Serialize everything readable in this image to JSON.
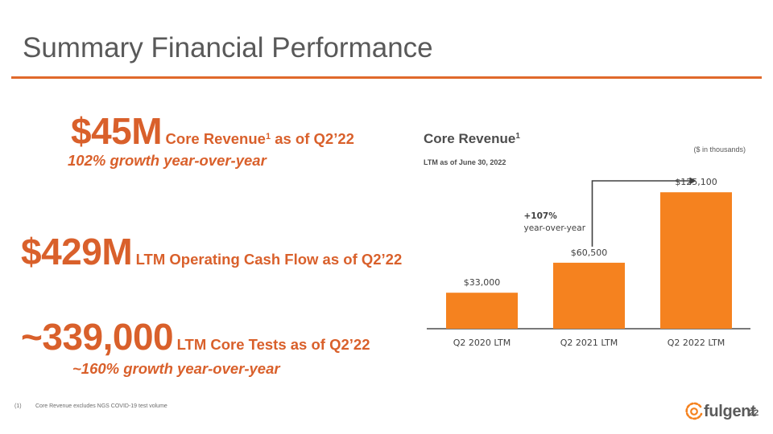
{
  "slide": {
    "title": "Summary Financial Performance",
    "page_number": "22",
    "logo_text": "fulgent"
  },
  "metrics": {
    "core_revenue": {
      "value": "$45M",
      "label": "Core Revenue",
      "sup": "1",
      "suffix": " as of Q2’22",
      "growth": "102% growth year-over-year"
    },
    "cash_flow": {
      "value": "$429M",
      "label": "LTM Operating Cash Flow as of Q2’22"
    },
    "core_tests": {
      "value": "~339,000",
      "label": "LTM Core Tests as of Q2’22",
      "growth": "~160% growth year-over-year"
    }
  },
  "chart_header": {
    "title": "Core Revenue",
    "sup": "1",
    "subtitle": "LTM as of June 30, 2022",
    "units": "($ in thousands)"
  },
  "chart_data": {
    "type": "bar",
    "categories": [
      "Q2 2020 LTM",
      "Q2 2021 LTM",
      "Q2 2022 LTM"
    ],
    "values": [
      33000,
      60500,
      125100
    ],
    "data_labels": [
      "$33,000",
      "$60,500",
      "$125,100"
    ],
    "ylim": [
      0,
      140000
    ],
    "grid": false,
    "bar_color": "#F5821F",
    "annotation": {
      "value": "+107%",
      "text": "year-over-year",
      "from": "Q2 2021 LTM",
      "to": "Q2 2022 LTM"
    }
  },
  "footnote": {
    "number": "(1)",
    "text": "Core Revenue excludes NGS COVID-19 test volume"
  },
  "colors": {
    "accent": "#D9602B",
    "bar": "#F5821F",
    "rule": "#E0692B"
  }
}
